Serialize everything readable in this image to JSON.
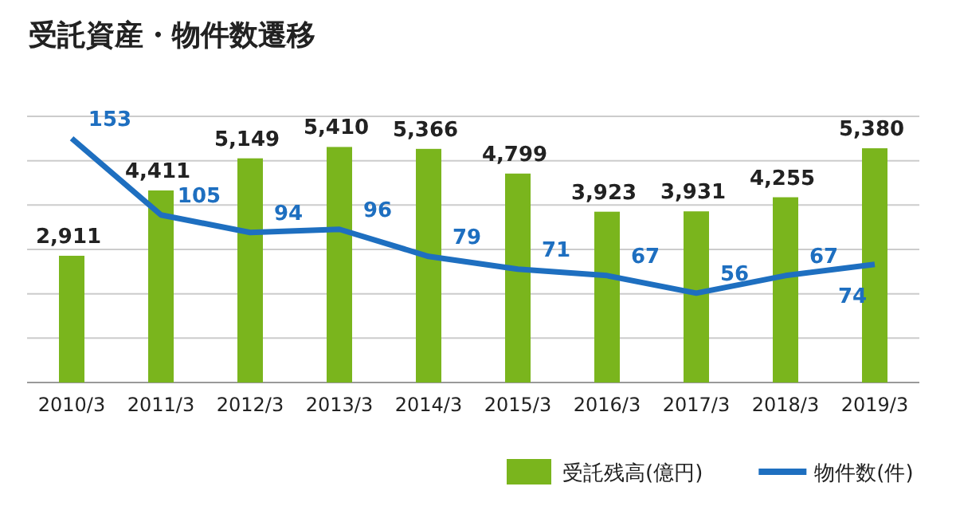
{
  "chart_data": {
    "type": "bar",
    "title": "受託資産・物件数遷移",
    "categories": [
      "2010/3",
      "2011/3",
      "2012/3",
      "2013/3",
      "2014/3",
      "2015/3",
      "2016/3",
      "2017/3",
      "2018/3",
      "2019/3"
    ],
    "series": [
      {
        "name": "受託残高(億円)",
        "color": "#7ab51d",
        "values": [
          2911,
          4411,
          5149,
          5410,
          5366,
          4799,
          3923,
          3931,
          4255,
          5380
        ],
        "value_labels": [
          "2,911",
          "4,411",
          "5,149",
          "5,410",
          "5,366",
          "4,799",
          "3,923",
          "3,931",
          "4,255",
          "5,380"
        ]
      },
      {
        "name": "物件数(件)",
        "type": "line",
        "axis": "y2",
        "color": "#1e6fc0",
        "values": [
          153,
          105,
          94,
          96,
          79,
          71,
          67,
          56,
          67,
          74
        ],
        "value_labels": [
          "153",
          "105",
          "94",
          "96",
          "79",
          "71",
          "67",
          "56",
          "67",
          "74"
        ]
      }
    ],
    "grid": "y",
    "legend": "bottom right",
    "marker": "none"
  }
}
